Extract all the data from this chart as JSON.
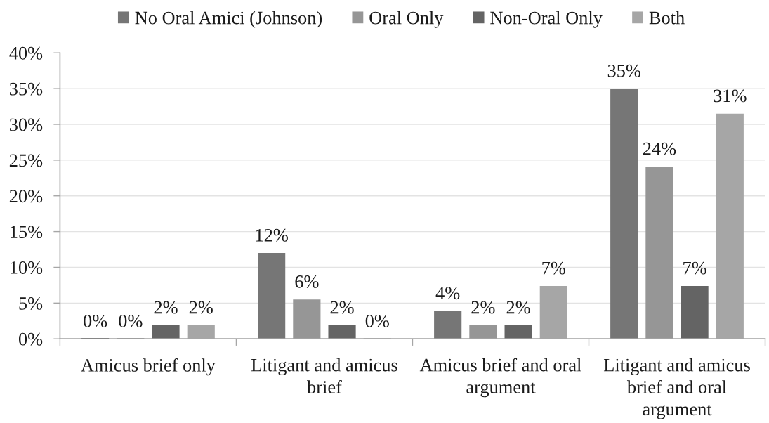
{
  "chart_data": {
    "type": "bar",
    "categories": [
      "Amicus brief only",
      "Litigant and amicus\nbrief",
      "Amicus brief and oral\nargument",
      "Litigant and amicus\nbrief and oral\nargument"
    ],
    "series": [
      {
        "name": "No Oral Amici (Johnson)",
        "color": "#767676",
        "values": [
          0,
          12.0,
          3.9,
          35.0
        ],
        "value_labels": [
          "0%",
          "12%",
          "4%",
          "35%"
        ]
      },
      {
        "name": "Oral Only",
        "color": "#969696",
        "values": [
          0,
          5.5,
          1.9,
          24.1
        ],
        "value_labels": [
          "0%",
          "6%",
          "2%",
          "24%"
        ]
      },
      {
        "name": "Non-Oral Only",
        "color": "#646464",
        "values": [
          1.9,
          1.9,
          1.9,
          7.4
        ],
        "value_labels": [
          "2%",
          "2%",
          "2%",
          "7%"
        ]
      },
      {
        "name": "Both",
        "color": "#a6a6a6",
        "values": [
          1.9,
          0,
          7.4,
          31.5
        ],
        "value_labels": [
          "2%",
          "0%",
          "7%",
          "31%"
        ]
      }
    ],
    "ylim": [
      0,
      40
    ],
    "yticks": [
      {
        "value": 0,
        "label": "0%"
      },
      {
        "value": 5,
        "label": "5%"
      },
      {
        "value": 10,
        "label": "10%"
      },
      {
        "value": 15,
        "label": "15%"
      },
      {
        "value": 20,
        "label": "20%"
      },
      {
        "value": 25,
        "label": "25%"
      },
      {
        "value": 30,
        "label": "30%"
      },
      {
        "value": 35,
        "label": "35%"
      },
      {
        "value": 40,
        "label": "40%"
      }
    ],
    "grid": "y",
    "legend": "top"
  }
}
